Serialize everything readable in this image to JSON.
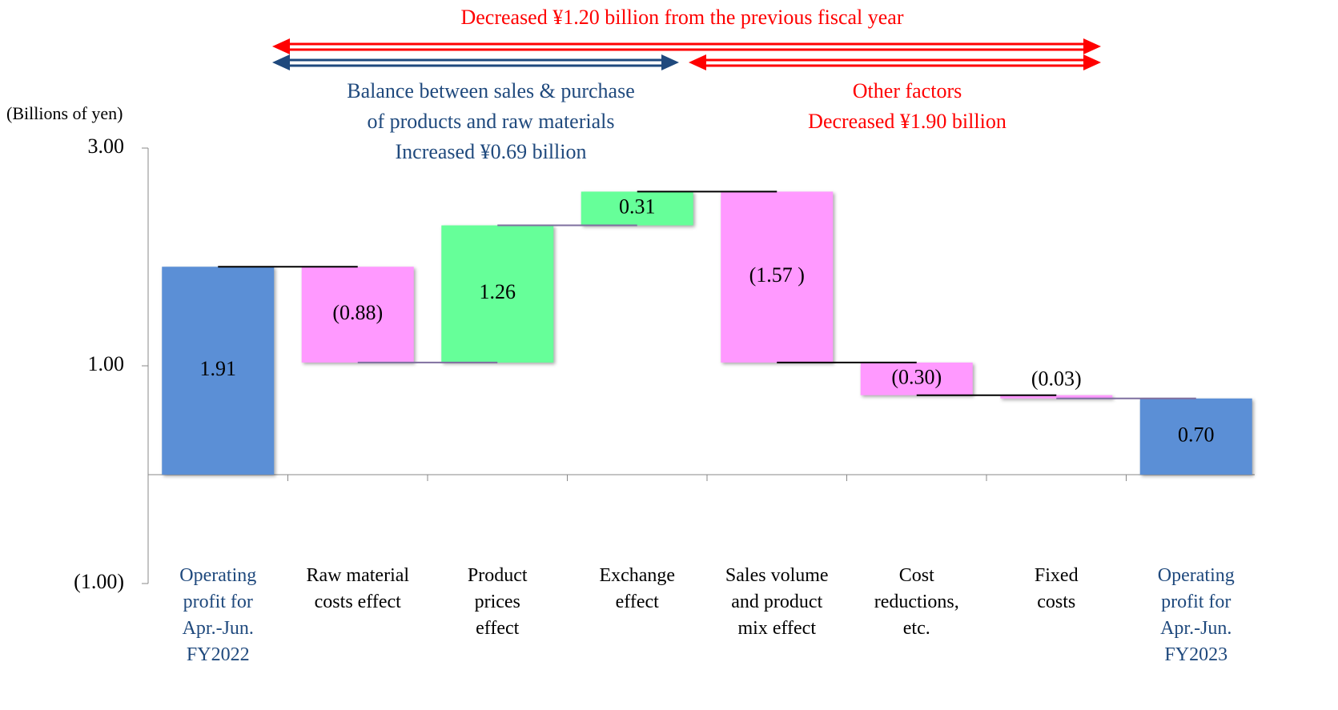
{
  "chart_data": {
    "type": "waterfall",
    "y_axis_label": "(Billions of yen)",
    "categories": [
      "Operating\nprofit for\nApr.-Jun.\nFY2022",
      "Raw material\ncosts effect",
      "Product\nprices\neffect",
      "Exchange\neffect",
      "Sales volume\nand product\nmix effect",
      "Cost\nreductions,\netc.",
      "Fixed\ncosts",
      "Operating\nprofit for\nApr.-Jun.\nFY2023"
    ],
    "measure": [
      "total",
      "relative",
      "relative",
      "relative",
      "relative",
      "relative",
      "relative",
      "total"
    ],
    "values": [
      1.91,
      -0.88,
      1.26,
      0.31,
      -1.57,
      -0.3,
      -0.03,
      0.7
    ],
    "value_labels": [
      "1.91",
      "(0.88)",
      "1.26",
      "0.31",
      "(1.57 )",
      "(0.30)",
      "(0.03)",
      "0.70"
    ],
    "colors": {
      "total": "#5b8fd6",
      "increase": "#66ff99",
      "decrease": "#ff99ff"
    },
    "ylim": [
      -1.0,
      3.0
    ],
    "yticks": [
      {
        "value": -1.0,
        "label": "(1.00)"
      },
      {
        "value": 1.0,
        "label": "1.00"
      },
      {
        "value": 3.0,
        "label": "3.00"
      }
    ],
    "grid": false,
    "annotations": {
      "total_change": "Decreased ¥1.20 billion from the previous fiscal year",
      "balance": "Balance between sales & purchase\nof products and raw materials\nIncreased ¥0.69 billion",
      "other": "Other factors\nDecreased ¥1.90 billion"
    }
  }
}
